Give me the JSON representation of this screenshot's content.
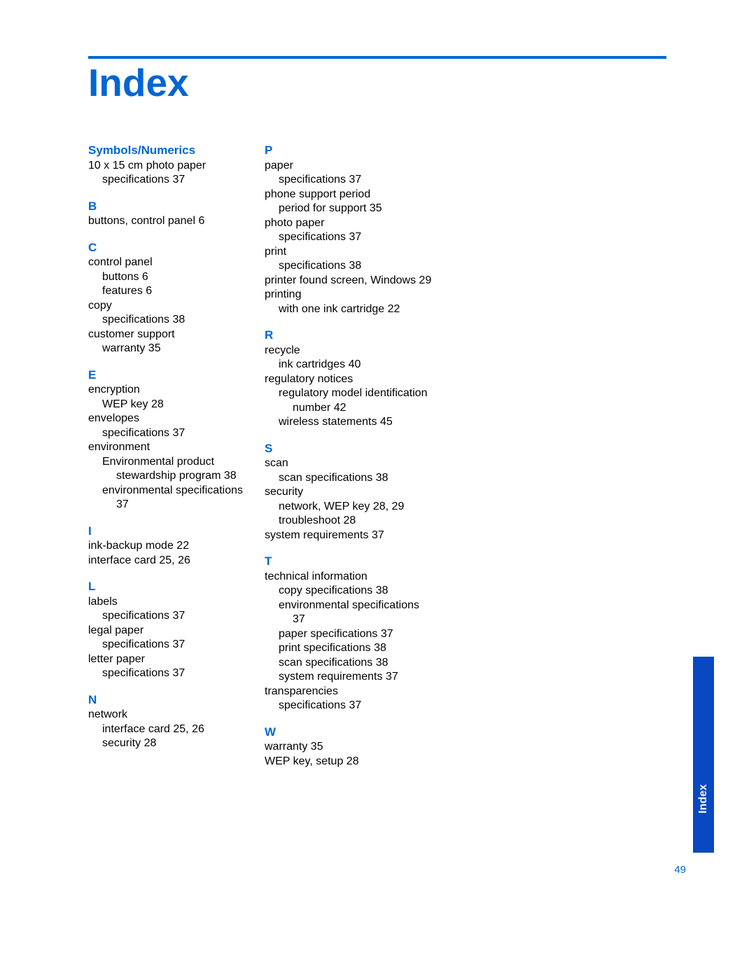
{
  "colors": {
    "accent": "#0066d4",
    "tab_bg": "#0848c0",
    "text": "#000000",
    "background": "#ffffff"
  },
  "page": {
    "title": "Index",
    "number": "49",
    "side_tab_label": "Index"
  },
  "left": {
    "symnum_head": "Symbols/Numerics",
    "symnum_e1": "10 x 15 cm photo paper",
    "symnum_e2": "specifications 37",
    "b_head": "B",
    "b_e1": "buttons, control panel 6",
    "c_head": "C",
    "c_e1": "control panel",
    "c_e2": "buttons 6",
    "c_e3": "features 6",
    "c_e4": "copy",
    "c_e5": "specifications 38",
    "c_e6": "customer support",
    "c_e7": "warranty 35",
    "e_head": "E",
    "e_e1": "encryption",
    "e_e2": "WEP key 28",
    "e_e3": "envelopes",
    "e_e4": "specifications 37",
    "e_e5": "environment",
    "e_e6": "Environmental product stewardship program 38",
    "e_e7": "environmental specifications 37",
    "i_head": "I",
    "i_e1": "ink-backup mode 22",
    "i_e2": "interface card 25, 26",
    "l_head": "L",
    "l_e1": "labels",
    "l_e2": "specifications 37",
    "l_e3": "legal paper",
    "l_e4": "specifications 37",
    "l_e5": "letter paper",
    "l_e6": "specifications 37",
    "n_head": "N",
    "n_e1": "network",
    "n_e2": "interface card 25, 26",
    "n_e3": "security 28"
  },
  "right": {
    "p_head": "P",
    "p_e1": "paper",
    "p_e2": "specifications 37",
    "p_e3": "phone support period",
    "p_e4": "period for support 35",
    "p_e5": "photo paper",
    "p_e6": "specifications 37",
    "p_e7": "print",
    "p_e8": "specifications 38",
    "p_e9": "printer found screen, Windows 29",
    "p_e10": "printing",
    "p_e11": "with one ink cartridge 22",
    "r_head": "R",
    "r_e1": "recycle",
    "r_e2": "ink cartridges 40",
    "r_e3": "regulatory notices",
    "r_e4": "regulatory model identification number 42",
    "r_e5": "wireless statements 45",
    "s_head": "S",
    "s_e1": "scan",
    "s_e2": "scan specifications 38",
    "s_e3": "security",
    "s_e4": "network, WEP key 28, 29",
    "s_e5": "troubleshoot 28",
    "s_e6": "system requirements 37",
    "t_head": "T",
    "t_e1": "technical information",
    "t_e2": "copy specifications 38",
    "t_e3": "environmental specifications 37",
    "t_e4": "paper specifications 37",
    "t_e5": "print specifications 38",
    "t_e6": "scan specifications 38",
    "t_e7": "system requirements 37",
    "t_e8": "transparencies",
    "t_e9": "specifications 37",
    "w_head": "W",
    "w_e1": "warranty 35",
    "w_e2": "WEP key, setup 28"
  }
}
